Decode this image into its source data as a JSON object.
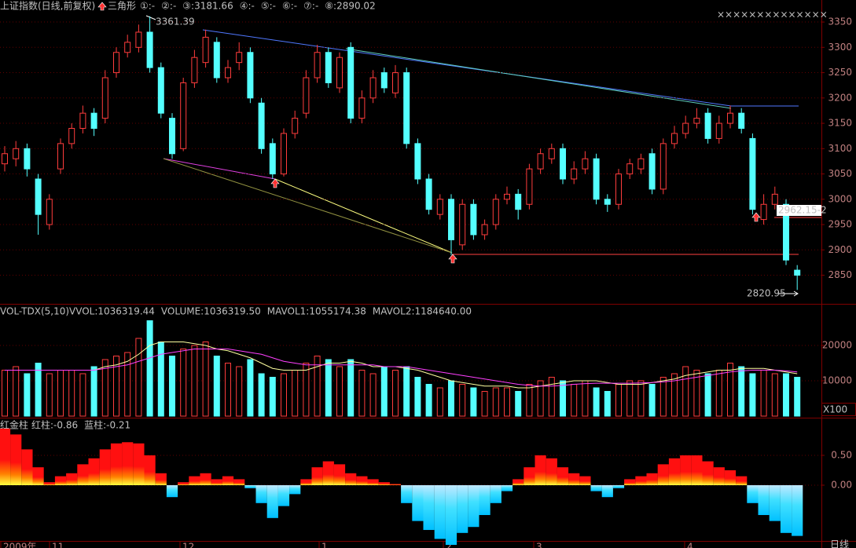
{
  "header": {
    "title": "上证指数(日线,前复权)",
    "pattern": "三角形",
    "items": [
      {
        "label": "①:-",
        "color": "#4080ff"
      },
      {
        "label": "②:-",
        "color": "#4080ff"
      },
      {
        "label": "③:3181.66",
        "color": "#4080ff"
      },
      {
        "label": "④:-",
        "color": "#ffffff"
      },
      {
        "label": "⑤:-",
        "color": "#ffff00"
      },
      {
        "label": "⑥:-",
        "color": "#ff40ff"
      },
      {
        "label": "⑦:-",
        "color": "#a0a0a0"
      },
      {
        "label": "⑧:2890.02",
        "color": "#ff4040"
      }
    ],
    "marks": "××××××××××××××",
    "date_labels": [
      "2009年",
      "11",
      "12",
      "1",
      "2",
      "3",
      "4"
    ],
    "period": "日线"
  },
  "chart_data": [
    {
      "type": "candlestick",
      "up_color": "#ff3c3c",
      "down_color": "#54ffff",
      "ylim": [
        2793.5,
        3393.5
      ],
      "yticks": [
        2850,
        2900,
        2950,
        3000,
        3050,
        3100,
        3150,
        3200,
        3250,
        3300,
        3350
      ],
      "grid": true,
      "annotations": [
        "3361.39",
        "2962.15-2",
        "2820.95"
      ],
      "open": [
        3070,
        3080,
        3100,
        3040,
        2950,
        3060,
        3110,
        3140,
        3170,
        3160,
        3250,
        3290,
        3300,
        3330,
        3260,
        3160,
        3100,
        3230,
        3270,
        3310,
        3240,
        3270,
        3290,
        3190,
        3110,
        3050,
        3130,
        3170,
        3240,
        3290,
        3220,
        3300,
        3160,
        3200,
        3250,
        3210,
        3250,
        3110,
        3040,
        2970,
        3000,
        2910,
        2990,
        2930,
        2950,
        3000,
        3010,
        2990,
        3060,
        3080,
        3100,
        3040,
        3060,
        3080,
        3000,
        2990,
        3050,
        3060,
        3090,
        3020,
        3110,
        3130,
        3150,
        3170,
        3120,
        3150,
        3170,
        3120,
        2960,
        2990,
        2990,
        2860
      ],
      "high": [
        3105,
        3115,
        3110,
        3050,
        3010,
        3120,
        3150,
        3185,
        3180,
        3255,
        3300,
        3325,
        3345,
        3361.39,
        3270,
        3170,
        3240,
        3295,
        3335,
        3320,
        3275,
        3310,
        3300,
        3200,
        3120,
        3140,
        3175,
        3255,
        3305,
        3300,
        3290,
        3310,
        3215,
        3255,
        3260,
        3265,
        3260,
        3120,
        3050,
        3010,
        3010,
        3000,
        3000,
        2960,
        3010,
        3025,
        3020,
        3070,
        3100,
        3110,
        3110,
        3075,
        3095,
        3090,
        3010,
        3060,
        3080,
        3090,
        3100,
        3120,
        3145,
        3165,
        3180,
        3180,
        3165,
        3185,
        3180,
        3130,
        3010,
        3025,
        3000,
        2870
      ],
      "low": [
        3055,
        3065,
        3045,
        2930,
        2940,
        3050,
        3100,
        3130,
        3125,
        3150,
        3240,
        3280,
        3290,
        3250,
        3160,
        3080,
        3095,
        3220,
        3260,
        3230,
        3230,
        3255,
        3190,
        3090,
        3040,
        3045,
        3120,
        3160,
        3230,
        3220,
        3210,
        3150,
        3150,
        3190,
        3210,
        3200,
        3100,
        3030,
        2970,
        2960,
        2890,
        2900,
        2920,
        2920,
        2940,
        2990,
        2960,
        2980,
        3050,
        3070,
        3030,
        3030,
        3050,
        2990,
        2975,
        2980,
        3040,
        3050,
        3010,
        3010,
        3100,
        3120,
        3140,
        3110,
        3110,
        3140,
        3130,
        2970,
        2950,
        2980,
        2870,
        2820.95
      ],
      "close": [
        3090,
        3100,
        3060,
        2970,
        3000,
        3110,
        3140,
        3170,
        3140,
        3240,
        3290,
        3310,
        3330,
        3260,
        3170,
        3090,
        3230,
        3280,
        3320,
        3240,
        3260,
        3290,
        3200,
        3100,
        3050,
        3130,
        3160,
        3240,
        3290,
        3230,
        3280,
        3160,
        3200,
        3240,
        3220,
        3250,
        3110,
        3040,
        2980,
        3000,
        2920,
        2990,
        2930,
        2950,
        3000,
        3010,
        2980,
        3060,
        3090,
        3100,
        3040,
        3060,
        3080,
        3000,
        2990,
        3050,
        3070,
        3080,
        3020,
        3110,
        3130,
        3150,
        3160,
        3120,
        3150,
        3170,
        3140,
        2980,
        2990,
        3010,
        2880,
        2850
      ]
    },
    {
      "type": "bar",
      "title": "VOL-TDX(5,10)",
      "legend": [
        {
          "label": "VVOL:1036319.44",
          "color": "#ffffff"
        },
        {
          "label": "VOLUME:1036319.50",
          "color": "#ffffff"
        },
        {
          "label": "MAVOL1:1055174.38",
          "color": "#ffff60"
        },
        {
          "label": "MAVOL2:1184640.00",
          "color": "#ff40ff"
        }
      ],
      "unit": "X100",
      "ylim": [
        0,
        31556
      ],
      "yticks": [
        10000,
        20000
      ],
      "grid": true,
      "values": [
        13000,
        14000,
        12000,
        15000,
        12000,
        13000,
        13000,
        12000,
        14000,
        16000,
        17000,
        18000,
        22000,
        27000,
        21000,
        17000,
        19000,
        20000,
        21000,
        17000,
        15000,
        14000,
        16000,
        12000,
        11000,
        12000,
        13000,
        15000,
        17000,
        16000,
        14000,
        16000,
        13000,
        12000,
        14000,
        13000,
        14000,
        11000,
        9000,
        8000,
        10000,
        9000,
        8000,
        7000,
        8000,
        8000,
        7000,
        9000,
        10000,
        11000,
        10000,
        9000,
        10000,
        8000,
        7000,
        9000,
        10000,
        10000,
        9000,
        11000,
        12000,
        14000,
        13000,
        12000,
        13000,
        15000,
        14000,
        12000,
        13000,
        12000,
        12000,
        11000
      ],
      "mavol1": {
        "color": "#ffffa0",
        "values": [
          13000,
          13000,
          13000,
          13000,
          13000,
          13000,
          13000,
          13000,
          13000,
          14000,
          14500,
          15500,
          17500,
          20000,
          21000,
          21000,
          21000,
          20500,
          20000,
          19000,
          18500,
          17500,
          16500,
          15000,
          13500,
          13000,
          13000,
          13000,
          14000,
          15000,
          15000,
          15500,
          15000,
          14000,
          14000,
          14000,
          13500,
          13000,
          12000,
          11000,
          10000,
          9500,
          9000,
          8500,
          8500,
          8500,
          8000,
          8000,
          8500,
          9000,
          9500,
          10000,
          10000,
          10000,
          9500,
          9000,
          9000,
          9000,
          9500,
          10000,
          10500,
          11500,
          12000,
          12500,
          13000,
          13000,
          13500,
          13500,
          13500,
          13000,
          12500,
          12000
        ]
      },
      "mavol2": {
        "color": "#ff40ff",
        "values": [
          13000,
          13000,
          13000,
          13000,
          13000,
          13000,
          13000,
          13000,
          13000,
          13500,
          14000,
          14500,
          15500,
          16500,
          17500,
          18000,
          18500,
          19000,
          19000,
          19000,
          19000,
          18500,
          18000,
          17500,
          16500,
          15500,
          15000,
          14500,
          14500,
          14500,
          14500,
          14500,
          14500,
          14500,
          14000,
          14000,
          14000,
          13500,
          13000,
          12500,
          12000,
          11500,
          11000,
          10500,
          10000,
          9500,
          9000,
          8700,
          8500,
          8500,
          8700,
          9000,
          9200,
          9300,
          9300,
          9300,
          9300,
          9400,
          9500,
          9700,
          10000,
          10500,
          11000,
          11500,
          12000,
          12500,
          12800,
          13000,
          13000,
          13000,
          12800,
          12500
        ]
      }
    },
    {
      "type": "bar",
      "title": "红金柱",
      "legend": [
        {
          "label": "红柱:-0.86",
          "color": "#ff4040"
        },
        {
          "label": "蓝柱:-0.21",
          "color": "#54ffff"
        }
      ],
      "ylim": [
        -0.947,
        1.118
      ],
      "yticks": [
        {
          "value": 0,
          "label": "0.00"
        },
        {
          "value": 0.5,
          "label": "0.50"
        }
      ],
      "grid": true,
      "values": [
        0.95,
        0.85,
        0.6,
        0.3,
        0.05,
        0.15,
        0.2,
        0.35,
        0.45,
        0.6,
        0.7,
        0.72,
        0.7,
        0.5,
        0.2,
        -0.2,
        0.05,
        0.15,
        0.2,
        0.1,
        0.15,
        0.1,
        -0.05,
        -0.3,
        -0.55,
        -0.35,
        -0.15,
        0.1,
        0.3,
        0.4,
        0.35,
        0.2,
        0.15,
        0.1,
        0.05,
        0.02,
        -0.3,
        -0.6,
        -0.75,
        -0.9,
        -1.0,
        -0.8,
        -0.7,
        -0.5,
        -0.3,
        -0.1,
        0.1,
        0.3,
        0.5,
        0.45,
        0.3,
        0.2,
        0.15,
        -0.1,
        -0.2,
        -0.05,
        0.1,
        0.15,
        0.2,
        0.35,
        0.45,
        0.5,
        0.5,
        0.4,
        0.3,
        0.25,
        0.15,
        -0.3,
        -0.5,
        -0.6,
        -0.8,
        -0.85
      ]
    }
  ]
}
